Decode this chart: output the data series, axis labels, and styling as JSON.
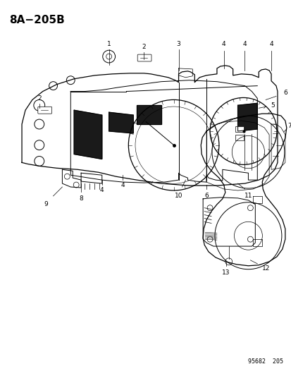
{
  "title": "8A−205B",
  "footer": "95682  205",
  "bg_color": "#ffffff",
  "line_color": "#000000",
  "title_fontsize": 11,
  "footer_fontsize": 6,
  "label_fontsize": 6.5,
  "fig_w": 4.14,
  "fig_h": 5.33,
  "dpi": 100
}
